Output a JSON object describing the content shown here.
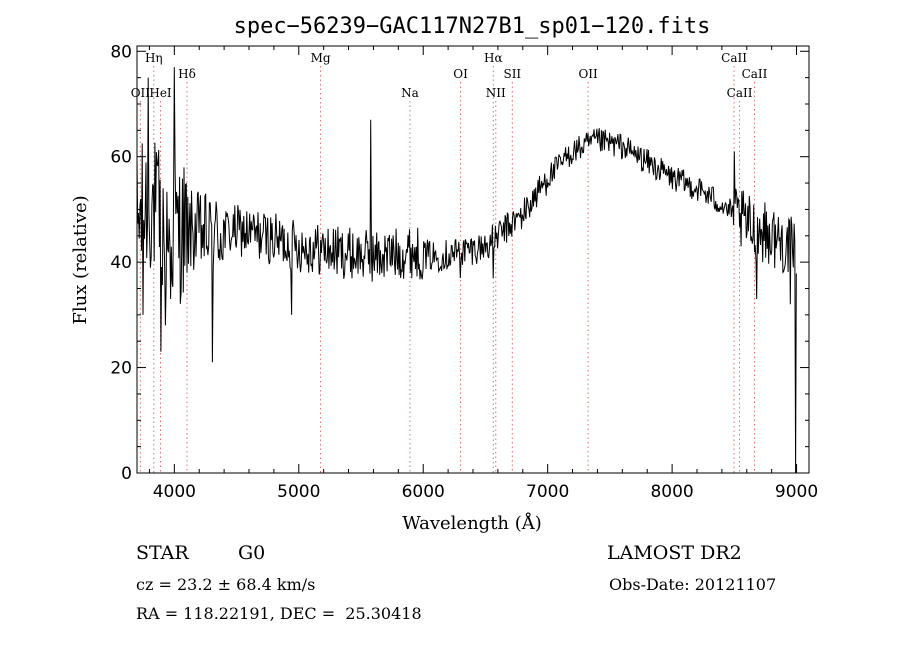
{
  "chart_data": {
    "type": "line",
    "title": "spec−56239−GAC117N27B1_sp01−120.fits",
    "xlabel": "Wavelength (Å)",
    "ylabel": "Flux (relative)",
    "xlim": [
      3700,
      9100
    ],
    "ylim": [
      0,
      81
    ],
    "xticks": [
      4000,
      5000,
      6000,
      7000,
      8000,
      9000
    ],
    "yticks": [
      0,
      20,
      40,
      60,
      80
    ],
    "grid": false,
    "spectrum_color": "#000000",
    "line_marker_color": "#e07070",
    "continuum_anchors": [
      [
        3700,
        47
      ],
      [
        3800,
        52
      ],
      [
        3900,
        47
      ],
      [
        4000,
        46
      ],
      [
        4100,
        46
      ],
      [
        4300,
        45
      ],
      [
        4500,
        46
      ],
      [
        4700,
        45
      ],
      [
        5000,
        43
      ],
      [
        5300,
        42
      ],
      [
        5600,
        41
      ],
      [
        5900,
        42
      ],
      [
        6100,
        41
      ],
      [
        6300,
        42
      ],
      [
        6500,
        43
      ],
      [
        6600,
        45
      ],
      [
        6800,
        49
      ],
      [
        7000,
        56
      ],
      [
        7200,
        61
      ],
      [
        7400,
        63
      ],
      [
        7600,
        62
      ],
      [
        7800,
        59
      ],
      [
        8000,
        56
      ],
      [
        8200,
        54
      ],
      [
        8400,
        51
      ],
      [
        8600,
        47
      ],
      [
        8800,
        45
      ],
      [
        9000,
        42
      ]
    ],
    "noise_segments": [
      {
        "from": 3700,
        "to": 4100,
        "amplitude": 14
      },
      {
        "from": 4100,
        "to": 4400,
        "amplitude": 8
      },
      {
        "from": 4400,
        "to": 6000,
        "amplitude": 5
      },
      {
        "from": 6000,
        "to": 7000,
        "amplitude": 3
      },
      {
        "from": 7000,
        "to": 8500,
        "amplitude": 2.5
      },
      {
        "from": 8500,
        "to": 9000,
        "amplitude": 6
      }
    ],
    "features": [
      {
        "x": 3727,
        "y": 81
      },
      {
        "x": 3750,
        "y": 30
      },
      {
        "x": 3790,
        "y": 75
      },
      {
        "x": 3835,
        "y": 25
      },
      {
        "x": 3890,
        "y": 23
      },
      {
        "x": 3930,
        "y": 28
      },
      {
        "x": 3970,
        "y": 33
      },
      {
        "x": 4000,
        "y": 77
      },
      {
        "x": 4102,
        "y": 38
      },
      {
        "x": 4305,
        "y": 21
      },
      {
        "x": 4940,
        "y": 30
      },
      {
        "x": 5578,
        "y": 67
      },
      {
        "x": 6300,
        "y": 37
      },
      {
        "x": 6563,
        "y": 37
      },
      {
        "x": 8450,
        "y": 51
      },
      {
        "x": 8498,
        "y": 61
      },
      {
        "x": 8680,
        "y": 33
      },
      {
        "x": 8740,
        "y": 44
      },
      {
        "x": 8950,
        "y": 32
      },
      {
        "x": 8990,
        "y": 0
      }
    ],
    "lines": [
      {
        "name": "OII",
        "wavelength": 3727,
        "row": 3
      },
      {
        "name": "Hη",
        "wavelength": 3835,
        "row": 0
      },
      {
        "name": "HeI",
        "wavelength": 3889,
        "row": 3
      },
      {
        "name": "Hδ",
        "wavelength": 4102,
        "row": 1
      },
      {
        "name": "Mg",
        "wavelength": 5175,
        "row": 0
      },
      {
        "name": "Na",
        "wavelength": 5893,
        "row": 3
      },
      {
        "name": "OI",
        "wavelength": 6300,
        "row": 1
      },
      {
        "name": "Hα",
        "wavelength": 6563,
        "row": 0
      },
      {
        "name": "NII",
        "wavelength": 6583,
        "row": 2
      },
      {
        "name": "SII",
        "wavelength": 6716,
        "row": 1
      },
      {
        "name": "OII",
        "wavelength": 7325,
        "row": 1
      },
      {
        "name": "CaII",
        "wavelength": 8498,
        "row": 0
      },
      {
        "name": "CaII",
        "wavelength": 8542,
        "row": 2
      },
      {
        "name": "CaII",
        "wavelength": 8662,
        "row": 1
      }
    ]
  },
  "info": {
    "class_label": "STAR",
    "subclass_label": "G0",
    "survey": "LAMOST DR2",
    "redshift_line": "cz = 23.2 ± 68.4 km/s",
    "obs_date_line": "Obs-Date: 20121107",
    "coords_line": "RA = 118.22191, DEC =  25.30418"
  }
}
